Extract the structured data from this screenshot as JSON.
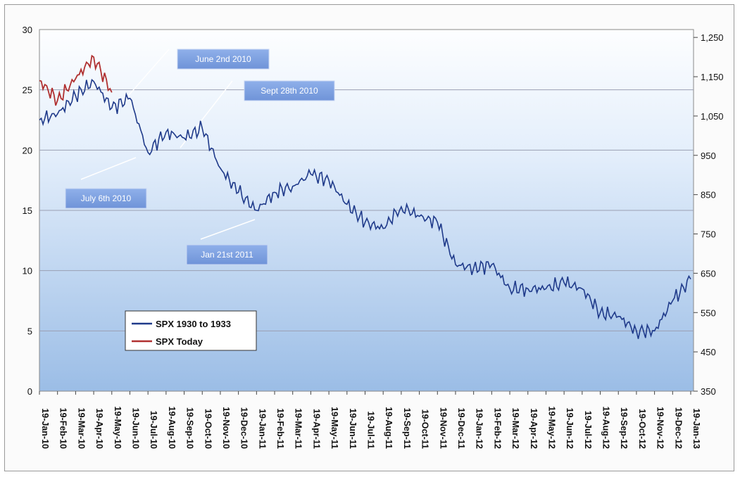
{
  "chart_data": {
    "type": "line",
    "title": "",
    "xlabel": "",
    "ylabel": "",
    "y_left": {
      "ticks": [
        0,
        5,
        10,
        15,
        20,
        25,
        30
      ],
      "range": [
        0,
        30
      ]
    },
    "y_right": {
      "ticks": [
        350,
        450,
        550,
        650,
        750,
        850,
        950,
        1050,
        1150,
        1250
      ],
      "tick_labels": [
        "350",
        "450",
        "550",
        "650",
        "750",
        "850",
        "950",
        "1,050",
        "1,150",
        "1,250"
      ],
      "range": [
        350,
        1270
      ]
    },
    "x_ticks": [
      "19-Jan-10",
      "19-Feb-10",
      "19-Mar-10",
      "19-Apr-10",
      "19-May-10",
      "19-Jun-10",
      "19-Jul-10",
      "19-Aug-10",
      "19-Sep-10",
      "19-Oct-10",
      "19-Nov-10",
      "19-Dec-10",
      "19-Jan-11",
      "19-Feb-11",
      "19-Mar-11",
      "19-Apr-11",
      "19-May-11",
      "19-Jun-11",
      "19-Jul-11",
      "19-Aug-11",
      "19-Sep-11",
      "19-Oct-11",
      "19-Nov-11",
      "19-Dec-11",
      "19-Jan-12",
      "19-Feb-12",
      "19-Mar-12",
      "19-Apr-12",
      "19-May-12",
      "19-Jun-12",
      "19-Jul-12",
      "19-Aug-12",
      "19-Sep-12",
      "19-Oct-12",
      "19-Nov-12",
      "19-Dec-12",
      "19-Jan-13"
    ],
    "grid": true,
    "legend_position": "bottom-left",
    "series": [
      {
        "name": "SPX 1930 to 1933",
        "color": "#1f3a8a",
        "axis": "left",
        "x": [
          "19-Jan-10",
          "19-Feb-10",
          "19-Mar-10",
          "19-Apr-10",
          "19-May-10",
          "19-Jun-10",
          "19-Jul-10",
          "19-Aug-10",
          "19-Sep-10",
          "19-Oct-10",
          "19-Nov-10",
          "19-Dec-10",
          "19-Jan-11",
          "19-Feb-11",
          "19-Mar-11",
          "19-Apr-11",
          "19-May-11",
          "19-Jun-11",
          "19-Jul-11",
          "19-Aug-11",
          "19-Sep-11",
          "19-Oct-11",
          "19-Nov-11",
          "19-Dec-11",
          "19-Jan-12",
          "19-Feb-12",
          "19-Mar-12",
          "19-Apr-12",
          "19-May-12",
          "19-Jun-12",
          "19-Jul-12",
          "19-Aug-12",
          "19-Sep-12",
          "19-Oct-12",
          "19-Nov-12",
          "19-Dec-12",
          "19-Jan-13"
        ],
        "values": [
          22.5,
          23.0,
          24.5,
          25.7,
          23.5,
          24.3,
          19.8,
          21.5,
          21.0,
          21.8,
          18.5,
          16.5,
          15.0,
          16.5,
          17.0,
          18.0,
          17.5,
          15.5,
          14.0,
          13.5,
          15.3,
          14.5,
          14.0,
          10.5,
          10.2,
          10.5,
          8.5,
          8.5,
          8.5,
          9.0,
          8.5,
          6.5,
          6.2,
          5.0,
          5.0,
          7.5,
          9.3
        ]
      },
      {
        "name": "SPX Today",
        "color": "#b03030",
        "axis": "right",
        "x": [
          "19-Jan-10",
          "19-Feb-10",
          "19-Mar-10",
          "19-Apr-10",
          "19-May-10"
        ],
        "values": [
          1140,
          1090,
          1145,
          1200,
          1110
        ]
      }
    ],
    "annotations": [
      {
        "text": "June 2nd 2010"
      },
      {
        "text": "Sept 28th 2010"
      },
      {
        "text": "July 6th 2010"
      },
      {
        "text": "Jan 21st 2011"
      }
    ]
  }
}
